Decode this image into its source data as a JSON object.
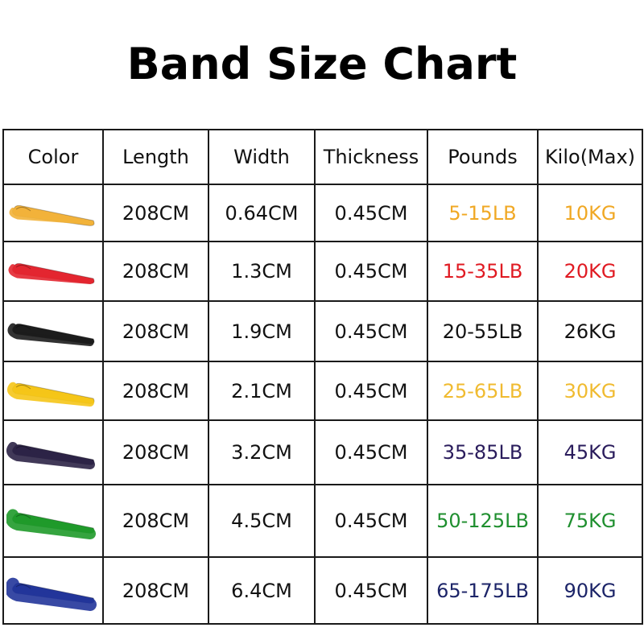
{
  "title": "Band Size Chart",
  "headers": [
    "Color",
    "Length",
    "Width",
    "Thickness",
    "Pounds",
    "Kilo(Max)"
  ],
  "rows": [
    {
      "band_color": "#f2b23a",
      "text_color": "#f0a824",
      "length": "208CM",
      "width": "0.64CM",
      "thickness": "0.45CM",
      "pounds": "5-15LB",
      "kilo": "10KG"
    },
    {
      "band_color": "#e32630",
      "text_color": "#e01a22",
      "length": "208CM",
      "width": "1.3CM",
      "thickness": "0.45CM",
      "pounds": "15-35LB",
      "kilo": "20KG"
    },
    {
      "band_color": "#1c1c1c",
      "text_color": "#111111",
      "length": "208CM",
      "width": "1.9CM",
      "thickness": "0.45CM",
      "pounds": "20-55LB",
      "kilo": "26KG"
    },
    {
      "band_color": "#f5c518",
      "text_color": "#f0bb30",
      "length": "208CM",
      "width": "2.1CM",
      "thickness": "0.45CM",
      "pounds": "25-65LB",
      "kilo": "30KG"
    },
    {
      "band_color": "#2c2346",
      "text_color": "#2a1c5c",
      "length": "208CM",
      "width": "3.2CM",
      "thickness": "0.45CM",
      "pounds": "35-85LB",
      "kilo": "45KG"
    },
    {
      "band_color": "#1f9a2a",
      "text_color": "#1f8f2f",
      "length": "208CM",
      "width": "4.5CM",
      "thickness": "0.45CM",
      "pounds": "50-125LB",
      "kilo": "75KG"
    },
    {
      "band_color": "#22359a",
      "text_color": "#1c2468",
      "length": "208CM",
      "width": "6.4CM",
      "thickness": "0.45CM",
      "pounds": "65-175LB",
      "kilo": "90KG"
    }
  ]
}
